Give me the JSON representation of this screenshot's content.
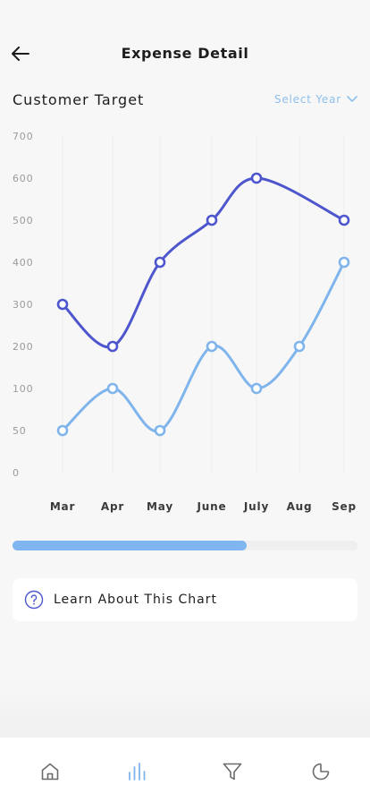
{
  "header": {
    "title": "Expense Detail",
    "back_icon": "arrow-left-icon"
  },
  "section": {
    "title": "Customer Target",
    "select_label": "Select Year"
  },
  "chart_data": {
    "type": "line",
    "categories": [
      "Mar",
      "Apr",
      "May",
      "June",
      "July",
      "Aug",
      "Sep"
    ],
    "ylim": [
      0,
      700
    ],
    "y_ticks": [
      0,
      50,
      100,
      200,
      300,
      400,
      500,
      600,
      700
    ],
    "grid": "vertical",
    "series": [
      {
        "values": [
          300,
          200,
          400,
          500,
          600,
          null,
          500
        ],
        "color": "#4e56cd"
      },
      {
        "values": [
          50,
          100,
          50,
          200,
          100,
          200,
          400
        ],
        "color": "#7fb5ec"
      }
    ]
  },
  "progress": {
    "value": 0.68,
    "color": "#80b6ef"
  },
  "learn": {
    "label": "Learn About This Chart",
    "icon": "help-circle-icon"
  },
  "tabbar": {
    "items": [
      {
        "icon": "home-icon"
      },
      {
        "icon": "bar-chart-icon",
        "active": true
      },
      {
        "icon": "filter-icon"
      },
      {
        "icon": "pie-chart-icon"
      }
    ]
  },
  "colors": {
    "accent": "#4e56cd",
    "light_accent": "#7fb5ec",
    "background": "#f7f7f7"
  }
}
